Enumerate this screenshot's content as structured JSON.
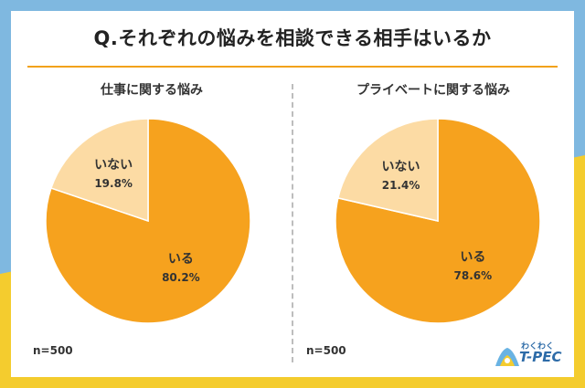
{
  "title": "Q.それぞれの悩みを相談できる相手はいるか",
  "logo": {
    "small_text": "わくわく",
    "main_text": "T-PEC"
  },
  "colors": {
    "background_blue": "#7fb8e0",
    "background_yellow": "#f4cc2e",
    "yes_slice": "#f6a21e",
    "no_slice": "#fcdba4"
  },
  "chart_data": [
    {
      "type": "pie",
      "title": "仕事に関する悩み",
      "note": "n=500",
      "slices": [
        {
          "label": "いる",
          "value": 80.2,
          "display": "80.2%"
        },
        {
          "label": "いない",
          "value": 19.8,
          "display": "19.8%"
        }
      ]
    },
    {
      "type": "pie",
      "title": "プライベートに関する悩み",
      "note": "n=500",
      "slices": [
        {
          "label": "いる",
          "value": 78.6,
          "display": "78.6%"
        },
        {
          "label": "いない",
          "value": 21.4,
          "display": "21.4%"
        }
      ]
    }
  ]
}
